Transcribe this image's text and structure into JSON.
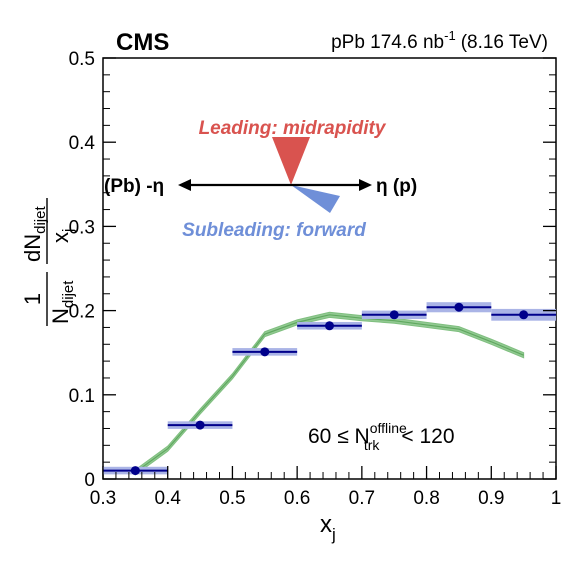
{
  "header": {
    "experiment": "CMS",
    "system": "pPb 174.6 nb",
    "lumi_sup": "-1",
    "energy": "(8.16 TeV)"
  },
  "axes": {
    "x_label": "x",
    "x_label_sub": "j",
    "y_label": {
      "num_a": "1",
      "den_a": "N",
      "den_a_sub": "dijet",
      "num_b": "dN",
      "num_b_sub": "dijet",
      "den_b": "x",
      "den_b_sub": "j"
    }
  },
  "diagram": {
    "leading": "Leading: midrapidity",
    "subleading": "Subleading: forward",
    "left_label": "(Pb) -η",
    "right_label": "η (p)"
  },
  "selection": {
    "prefix": "60 ≤ N",
    "sup": "offline",
    "sub": "trk",
    "suffix": "< 120"
  },
  "colors": {
    "points": "#00008B",
    "sys_band": "#aab4e6",
    "model_band": "#7fbf7f",
    "leading_marker": "#d9534f",
    "subleading_marker": "#6f8fd8"
  },
  "chart_data": {
    "type": "scatter",
    "xlim": [
      0.3,
      1.0
    ],
    "ylim": [
      0.0,
      0.5
    ],
    "x_ticks": [
      "0.3",
      "0.4",
      "0.5",
      "0.6",
      "0.7",
      "0.8",
      "0.9",
      "1"
    ],
    "y_ticks": [
      "0",
      "0.1",
      "0.2",
      "0.3",
      "0.4",
      "0.5"
    ],
    "series": [
      {
        "kind": "data",
        "x": [
          0.35,
          0.45,
          0.55,
          0.65,
          0.75,
          0.85,
          0.95
        ],
        "y": [
          0.01,
          0.064,
          0.151,
          0.182,
          0.195,
          0.204,
          0.195
        ],
        "bin_half_width": 0.05,
        "sys_unc": [
          0.0015,
          0.003,
          0.004,
          0.004,
          0.005,
          0.006,
          0.007
        ]
      },
      {
        "kind": "model",
        "x": [
          0.35,
          0.4,
          0.45,
          0.5,
          0.55,
          0.6,
          0.65,
          0.7,
          0.75,
          0.8,
          0.85,
          0.9,
          0.95
        ],
        "y": [
          0.008,
          0.036,
          0.08,
          0.122,
          0.172,
          0.186,
          0.195,
          0.191,
          0.188,
          0.183,
          0.178,
          0.163,
          0.147
        ],
        "band_halfwidth": 0.003
      }
    ]
  }
}
